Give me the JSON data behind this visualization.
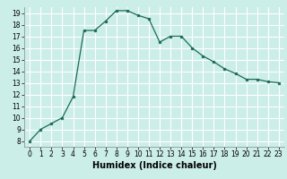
{
  "x": [
    0,
    1,
    2,
    3,
    4,
    5,
    6,
    7,
    8,
    9,
    10,
    11,
    12,
    13,
    14,
    15,
    16,
    17,
    18,
    19,
    20,
    21,
    22,
    23
  ],
  "y": [
    8.0,
    9.0,
    9.5,
    10.0,
    11.8,
    17.5,
    17.5,
    18.3,
    19.2,
    19.2,
    18.8,
    18.5,
    16.5,
    17.0,
    17.0,
    16.0,
    15.3,
    14.8,
    14.2,
    13.8,
    13.3,
    13.3,
    13.1,
    13.0
  ],
  "xlabel": "Humidex (Indice chaleur)",
  "xlim": [
    -0.5,
    23.5
  ],
  "ylim": [
    7.5,
    19.5
  ],
  "yticks": [
    8,
    9,
    10,
    11,
    12,
    13,
    14,
    15,
    16,
    17,
    18,
    19
  ],
  "xticks": [
    0,
    1,
    2,
    3,
    4,
    5,
    6,
    7,
    8,
    9,
    10,
    11,
    12,
    13,
    14,
    15,
    16,
    17,
    18,
    19,
    20,
    21,
    22,
    23
  ],
  "line_color": "#1a6b5a",
  "marker_color": "#1a6b5a",
  "bg_color": "#cceee8",
  "grid_color": "#ffffff",
  "label_fontsize": 7,
  "tick_fontsize": 5.5
}
